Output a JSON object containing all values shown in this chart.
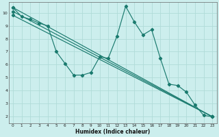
{
  "xlabel": "Humidex (Indice chaleur)",
  "bg_color": "#cceeed",
  "grid_color": "#b0dbd8",
  "line_color": "#1a7a6e",
  "xlim": [
    -0.5,
    23.5
  ],
  "ylim": [
    1.5,
    10.8
  ],
  "xticks": [
    0,
    1,
    2,
    3,
    4,
    5,
    6,
    7,
    8,
    9,
    10,
    11,
    12,
    13,
    14,
    15,
    16,
    17,
    18,
    19,
    20,
    21,
    22,
    23
  ],
  "yticks": [
    2,
    3,
    4,
    5,
    6,
    7,
    8,
    9,
    10
  ],
  "zigzag": {
    "x": [
      0,
      1,
      2,
      3,
      4,
      5,
      6,
      7,
      8,
      9,
      10,
      11,
      12,
      13,
      14,
      15,
      16,
      17,
      18,
      19,
      20,
      21,
      22,
      23
    ],
    "y": [
      10.4,
      9.7,
      9.5,
      9.2,
      9.0,
      7.0,
      6.1,
      5.2,
      5.2,
      5.4,
      6.6,
      6.5,
      8.2,
      10.5,
      9.3,
      8.3,
      8.7,
      6.5,
      4.5,
      4.4,
      3.9,
      2.9,
      2.1,
      2.0
    ]
  },
  "straight_lines": [
    {
      "x": [
        0,
        23
      ],
      "y": [
        10.4,
        2.0
      ]
    },
    {
      "x": [
        0,
        23
      ],
      "y": [
        10.1,
        2.0
      ]
    },
    {
      "x": [
        0,
        23
      ],
      "y": [
        9.8,
        2.0
      ]
    }
  ]
}
